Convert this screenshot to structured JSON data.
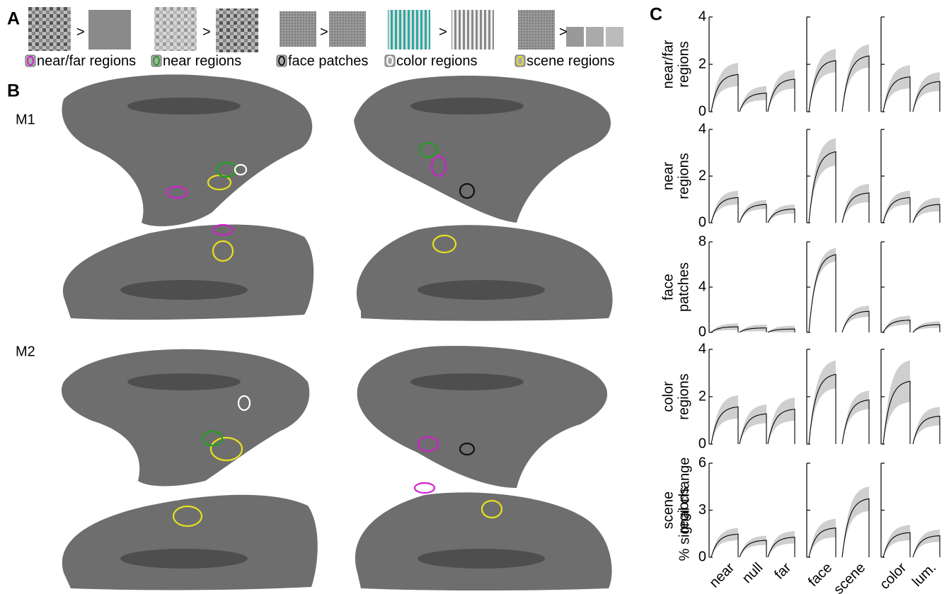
{
  "panel_a": {
    "label": "A",
    "items": [
      {
        "compare": ">",
        "legend": "near/far regions",
        "color": "#d020d0"
      },
      {
        "compare": ">",
        "legend": "near regions",
        "color": "#20a020"
      },
      {
        "compare": ">",
        "legend": "face patches",
        "color": "#111111"
      },
      {
        "compare": ">",
        "legend": "color regions",
        "color": "#ffffff"
      },
      {
        "compare": ">",
        "legend": "scene regions",
        "color": "#e8e020"
      }
    ]
  },
  "panel_b": {
    "label": "B",
    "subjects": [
      "M1",
      "M2"
    ]
  },
  "panel_c": {
    "label": "C",
    "y_label": "% signal change",
    "categories": [
      "near",
      "null",
      "far",
      "face",
      "scene",
      "color",
      "lum."
    ],
    "rows": [
      {
        "title": [
          "near/far",
          "regions"
        ],
        "ylim": [
          0,
          4
        ],
        "yticks": [
          0,
          2,
          4
        ],
        "values": [
          1.6,
          0.8,
          1.4,
          2.2,
          2.4,
          1.5,
          1.3
        ],
        "errors": [
          0.5,
          0.3,
          0.4,
          0.5,
          0.5,
          0.5,
          0.4
        ]
      },
      {
        "title": [
          "near",
          "regions"
        ],
        "ylim": [
          0,
          4
        ],
        "yticks": [
          0,
          2,
          4
        ],
        "values": [
          1.1,
          0.8,
          0.6,
          3.1,
          1.3,
          1.1,
          0.8
        ],
        "errors": [
          0.3,
          0.2,
          0.2,
          0.6,
          0.4,
          0.3,
          0.3
        ]
      },
      {
        "title": [
          "face",
          "patches"
        ],
        "ylim": [
          0,
          8
        ],
        "yticks": [
          0,
          4,
          8
        ],
        "values": [
          0.5,
          0.4,
          0.3,
          7.0,
          1.9,
          1.1,
          0.7
        ],
        "errors": [
          0.3,
          0.3,
          0.3,
          0.6,
          0.5,
          0.4,
          0.3
        ]
      },
      {
        "title": [
          "color",
          "regions"
        ],
        "ylim": [
          0,
          4
        ],
        "yticks": [
          0,
          2,
          4
        ],
        "values": [
          1.6,
          1.3,
          1.5,
          3.0,
          1.9,
          2.7,
          1.2
        ],
        "errors": [
          0.5,
          0.4,
          0.5,
          0.6,
          0.4,
          0.9,
          0.4
        ]
      },
      {
        "title": [
          "scene",
          "regions"
        ],
        "ylim": [
          0,
          6
        ],
        "yticks": [
          0,
          3,
          6
        ],
        "values": [
          1.5,
          1.1,
          1.3,
          1.9,
          3.8,
          1.6,
          1.4
        ],
        "errors": [
          0.4,
          0.3,
          0.4,
          0.6,
          0.8,
          0.5,
          0.4
        ]
      }
    ]
  }
}
